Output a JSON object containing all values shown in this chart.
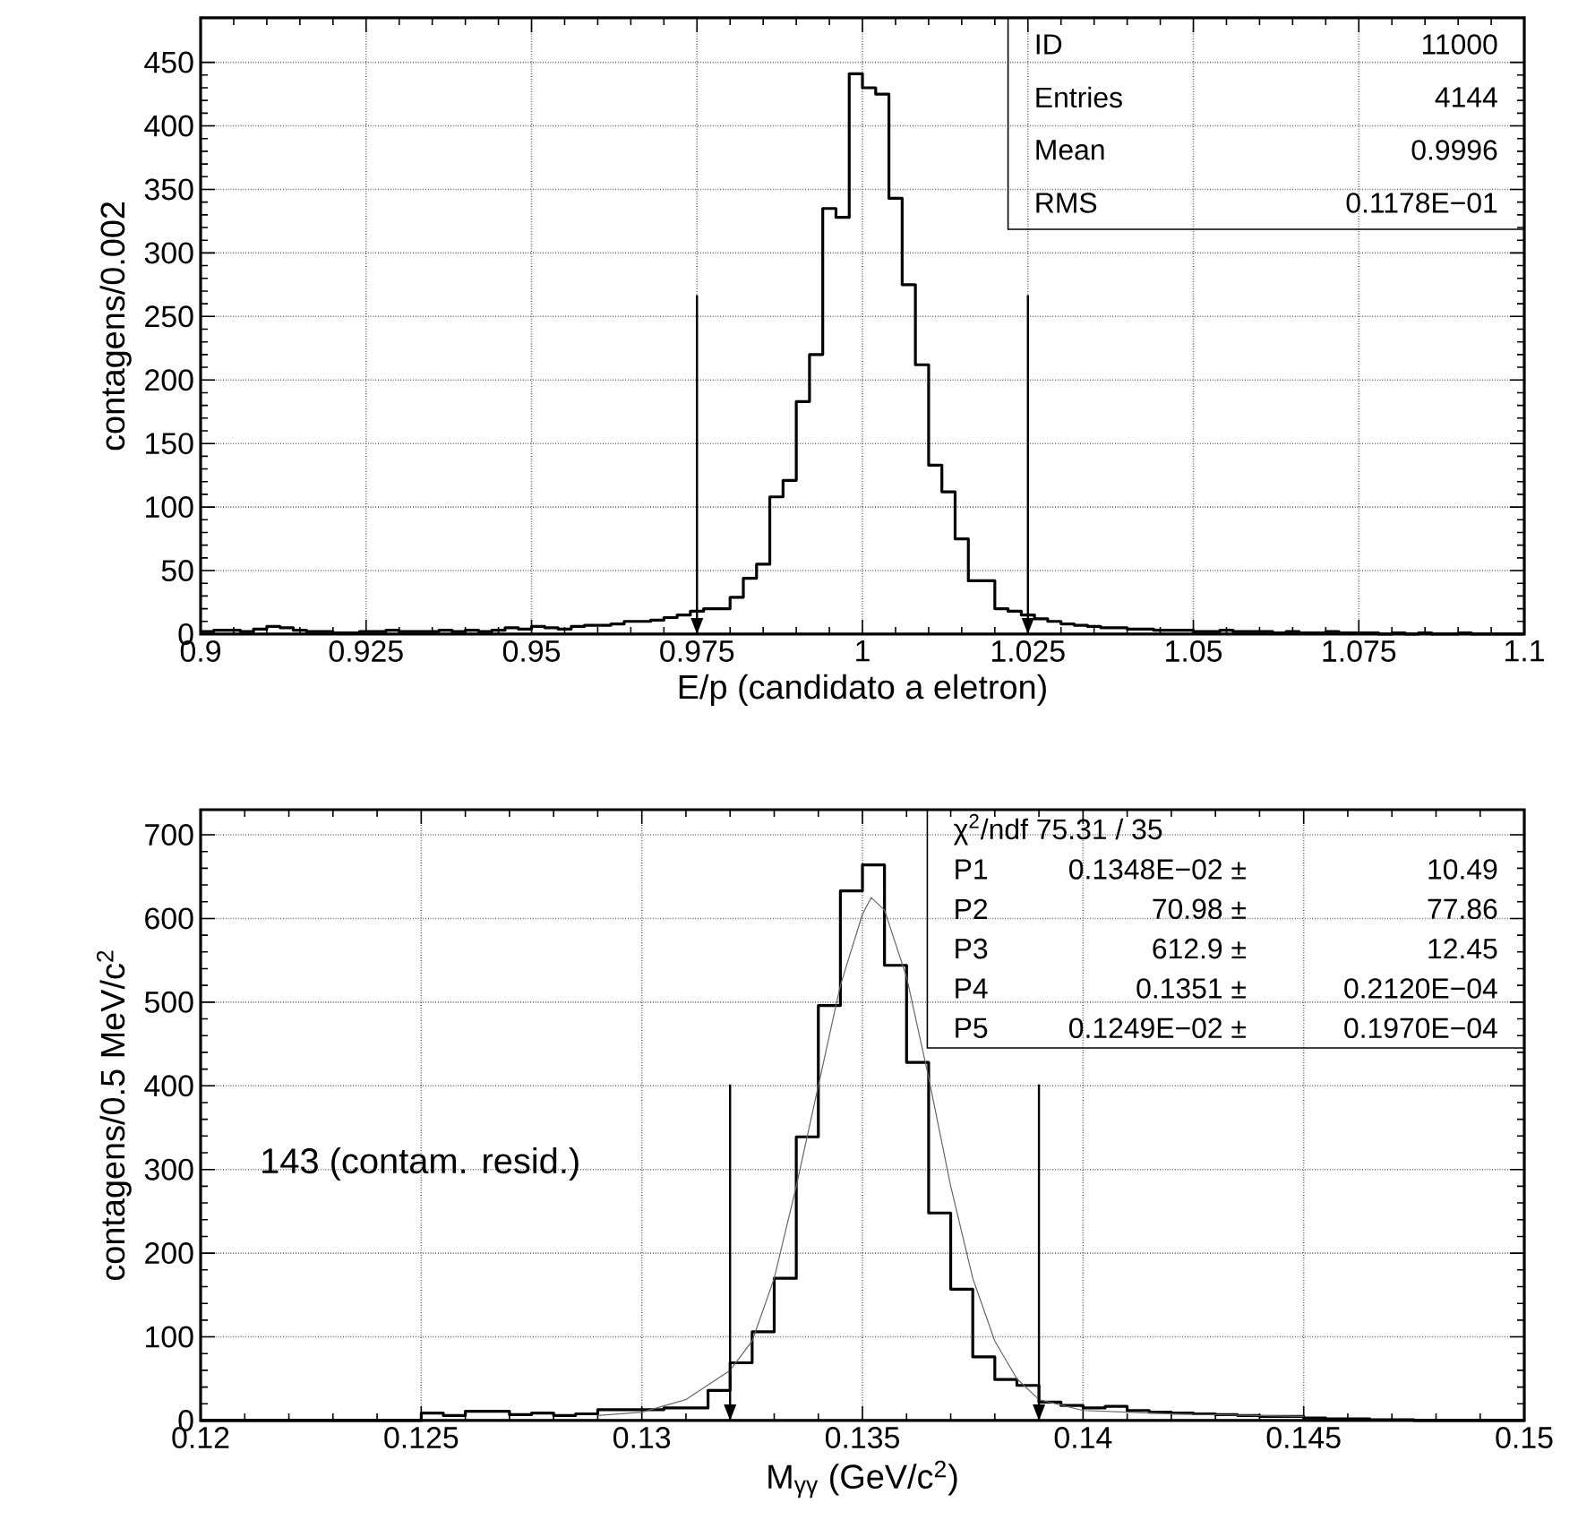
{
  "chart_data": [
    {
      "type": "histogram",
      "xlabel": "E/p (candidato a eletron)",
      "ylabel": "contagens/0.002",
      "color": "#000000",
      "grid": true,
      "bins": [
        0.9,
        0.902,
        0.904,
        0.906,
        0.908,
        0.91,
        0.912,
        0.914,
        0.916,
        0.918,
        0.92,
        0.922,
        0.924,
        0.926,
        0.928,
        0.93,
        0.932,
        0.934,
        0.936,
        0.938,
        0.94,
        0.942,
        0.944,
        0.946,
        0.948,
        0.95,
        0.952,
        0.954,
        0.956,
        0.958,
        0.96,
        0.962,
        0.964,
        0.966,
        0.968,
        0.97,
        0.972,
        0.974,
        0.976,
        0.978,
        0.98,
        0.982,
        0.984,
        0.986,
        0.988,
        0.99,
        0.992,
        0.994,
        0.996,
        0.998,
        1.0,
        1.002,
        1.004,
        1.006,
        1.008,
        1.01,
        1.012,
        1.014,
        1.016,
        1.018,
        1.02,
        1.022,
        1.024,
        1.026,
        1.028,
        1.03,
        1.032,
        1.034,
        1.036,
        1.038,
        1.04,
        1.042,
        1.044,
        1.046,
        1.048,
        1.05,
        1.052,
        1.054,
        1.056,
        1.058,
        1.06,
        1.062,
        1.064,
        1.066,
        1.068,
        1.07,
        1.072,
        1.074,
        1.076,
        1.078,
        1.08,
        1.082,
        1.084,
        1.086,
        1.088,
        1.09,
        1.092,
        1.094,
        1.096,
        1.098,
        1.1
      ],
      "values": [
        2,
        3,
        3,
        2,
        4,
        6,
        5,
        3,
        2,
        2,
        1,
        1,
        2,
        2,
        3,
        2,
        2,
        2,
        3,
        2,
        3,
        2,
        3,
        5,
        4,
        6,
        5,
        4,
        6,
        7,
        7,
        8,
        10,
        10,
        11,
        13,
        15,
        18,
        20,
        20,
        29,
        44,
        55,
        108,
        121,
        183,
        220,
        335,
        328,
        441,
        430,
        425,
        343,
        275,
        212,
        133,
        112,
        75,
        42,
        42,
        20,
        18,
        15,
        12,
        10,
        8,
        7,
        6,
        5,
        5,
        4,
        4,
        3,
        3,
        3,
        2,
        2,
        3,
        2,
        2,
        2,
        1,
        2,
        1,
        1,
        2,
        1,
        1,
        1,
        0,
        1,
        0,
        1,
        0,
        0,
        1,
        0,
        0,
        0,
        0
      ],
      "xlim": [
        0.9,
        1.1
      ],
      "ylim": [
        0,
        485
      ],
      "xticks": [
        0.9,
        0.925,
        0.95,
        0.975,
        1,
        1.025,
        1.05,
        1.075,
        1.1
      ],
      "yticks": [
        0,
        50,
        100,
        150,
        200,
        250,
        300,
        350,
        400,
        450
      ],
      "ref_lines": [
        {
          "axis": "x",
          "value": 0.975
        },
        {
          "axis": "x",
          "value": 1.025
        }
      ],
      "annotations": [
        "ID",
        "11000",
        "Entries",
        "4144",
        "Mean",
        "0.9996",
        "RMS",
        "0.1178E−01"
      ]
    },
    {
      "type": "histogram",
      "xlabel": "M$_{γγ}$ (GeV/c$^{2}$)",
      "ylabel": "contagens/0.5 MeV/c$^{2}$",
      "grid": true,
      "series": [
        {
          "type": "histogram",
          "color": "#000000",
          "bins": [
            0.12,
            0.1205,
            0.121,
            0.1215,
            0.122,
            0.1225,
            0.123,
            0.1235,
            0.124,
            0.1245,
            0.125,
            0.1255,
            0.126,
            0.1265,
            0.127,
            0.1275,
            0.128,
            0.1285,
            0.129,
            0.1295,
            0.13,
            0.1305,
            0.131,
            0.1315,
            0.132,
            0.1325,
            0.133,
            0.1335,
            0.134,
            0.1345,
            0.135,
            0.1355,
            0.136,
            0.1365,
            0.137,
            0.1375,
            0.138,
            0.1385,
            0.139,
            0.1395,
            0.14,
            0.1405,
            0.141,
            0.1415,
            0.142,
            0.1425,
            0.143,
            0.1435,
            0.144,
            0.1445,
            0.145,
            0.1455,
            0.146,
            0.1465,
            0.147,
            0.1475,
            0.148,
            0.1485,
            0.149,
            0.1495,
            0.15
          ],
          "values": [
            0,
            0,
            0,
            0,
            0,
            0,
            0,
            0,
            0,
            0,
            9,
            6,
            11,
            11,
            7,
            9,
            6,
            8,
            13,
            13,
            13,
            15,
            15,
            36,
            69,
            106,
            170,
            339,
            496,
            633,
            664,
            544,
            428,
            248,
            157,
            76,
            49,
            42,
            22,
            18,
            15,
            17,
            12,
            10,
            9,
            8,
            7,
            6,
            5,
            5,
            3,
            2,
            2,
            1,
            1,
            0,
            0,
            0,
            0,
            0
          ]
        },
        {
          "type": "line",
          "color": "#666666",
          "x": [
            0.129,
            0.13,
            0.131,
            0.132,
            0.1325,
            0.133,
            0.1335,
            0.134,
            0.1345,
            0.135,
            0.1352,
            0.1355,
            0.136,
            0.1365,
            0.137,
            0.1375,
            0.138,
            0.1385,
            0.139,
            0.14,
            0.142,
            0.145
          ],
          "values": [
            6,
            10,
            25,
            60,
            95,
            170,
            280,
            400,
            520,
            605,
            625,
            610,
            530,
            410,
            280,
            170,
            95,
            50,
            25,
            12,
            8,
            5
          ]
        }
      ],
      "xlim": [
        0.12,
        0.15
      ],
      "ylim": [
        0,
        730
      ],
      "xticks": [
        0.12,
        0.125,
        0.13,
        0.135,
        0.14,
        0.145,
        0.15
      ],
      "yticks": [
        0,
        100,
        200,
        300,
        400,
        500,
        600,
        700
      ],
      "ref_lines": [
        {
          "axis": "x",
          "value": 0.132
        },
        {
          "axis": "x",
          "value": 0.139
        }
      ],
      "annotations": [
        "143 (contam. resid.)",
        "χ$^{2}$/ndf 75.31 / 35",
        "P1",
        "0.1348E−02 ±",
        "10.49",
        "P2",
        "70.98 ±",
        "77.86",
        "P3",
        "612.9 ±",
        "12.45",
        "P4",
        "0.1351 ±",
        "0.2120E−04",
        "P5",
        "0.1249E−02 ±",
        "0.1970E−04"
      ]
    }
  ]
}
